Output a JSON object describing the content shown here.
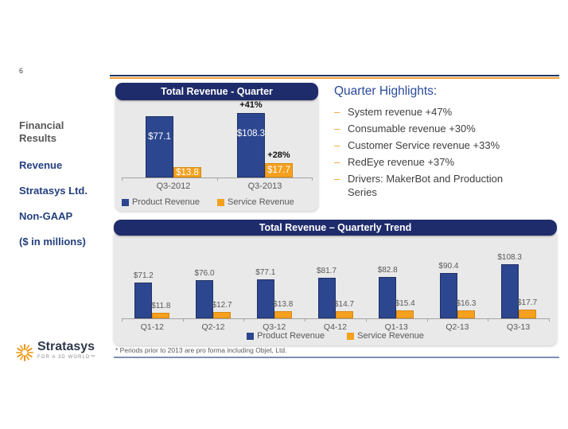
{
  "slide": {
    "number": "6",
    "footnote": "* Periods prior to 2013 are pro forma including Objet, Ltd."
  },
  "sidebar": {
    "lines": [
      {
        "text": "Financial Results",
        "style": "gray"
      },
      {
        "text": "Revenue",
        "style": "navy"
      },
      {
        "text": "Stratasys Ltd.",
        "style": "navy"
      },
      {
        "text": "Non-GAAP",
        "style": "navy"
      },
      {
        "text": "($ in millions)",
        "style": "navy"
      }
    ]
  },
  "highlights": {
    "title": "Quarter Highlights:",
    "bullet_glyph": "–",
    "items": [
      "System revenue +47%",
      "Consumable revenue +30%",
      "Customer Service revenue +33%",
      "RedEye revenue +37%",
      "Drivers: MakerBot and Production Series"
    ]
  },
  "logo": {
    "name": "Stratasys",
    "tagline": "FOR A 3D WORLD™"
  },
  "colors": {
    "header_navy": "#1F2C6B",
    "bar_navy": "#2C478F",
    "bar_navy_border": "#1F3168",
    "bar_orange": "#F5A01E",
    "bar_orange_border": "#D8890E",
    "panel_gray": "#E9E9E9",
    "accent_orange": "#F0A030",
    "rule_navy": "#1F3864",
    "bottom_rule_slate": "#7E90B4",
    "text_gray": "#595959",
    "text_royal_blue": "#2B4A9B"
  },
  "chart_data": [
    {
      "type": "bar",
      "title": "Total Revenue - Quarter",
      "categories": [
        "Q3-2012",
        "Q3-2013"
      ],
      "series": [
        {
          "name": "Product Revenue",
          "values": [
            77.1,
            108.3
          ],
          "labels": [
            "$77.1",
            "$108.3"
          ],
          "color": "#2C478F"
        },
        {
          "name": "Service Revenue",
          "values": [
            13.8,
            17.7
          ],
          "labels": [
            "$13.8",
            "$17.7"
          ],
          "color": "#F5A01E"
        }
      ],
      "annotations": [
        {
          "category": "Q3-2013",
          "series": "Product Revenue",
          "text": "+41%"
        },
        {
          "category": "Q3-2013",
          "series": "Service Revenue",
          "text": "+28%"
        }
      ],
      "legend_position": "bottom-left",
      "value_labels": "inside-white",
      "gridlines": false
    },
    {
      "type": "bar",
      "title": "Total Revenue – Quarterly Trend",
      "categories": [
        "Q1-12",
        "Q2-12",
        "Q3-12",
        "Q4-12",
        "Q1-13",
        "Q2-13",
        "Q3-13"
      ],
      "series": [
        {
          "name": "Product Revenue",
          "values": [
            71.2,
            76.0,
            77.1,
            81.7,
            82.8,
            90.4,
            108.3
          ],
          "labels": [
            "$71.2",
            "$76.0",
            "$77.1",
            "$81.7",
            "$82.8",
            "$90.4",
            "$108.3"
          ],
          "color": "#2C478F"
        },
        {
          "name": "Service Revenue",
          "values": [
            11.8,
            12.7,
            13.8,
            14.7,
            15.4,
            16.3,
            17.7
          ],
          "labels": [
            "$11.8",
            "$12.7",
            "$13.8",
            "$14.7",
            "$15.4",
            "$16.3",
            "$17.7"
          ],
          "color": "#F5A01E"
        }
      ],
      "annotations": [],
      "legend_position": "bottom-center",
      "value_labels": "above-gray",
      "gridlines": false
    }
  ]
}
